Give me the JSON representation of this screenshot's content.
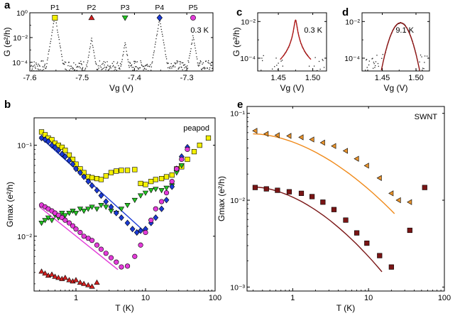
{
  "chart_data": [
    {
      "id": "a",
      "panel_label": "a",
      "type": "scatter",
      "xlabel": "Vg (V)",
      "ylabel": "G (e²/h)",
      "xlim": [
        -7.6,
        -7.25
      ],
      "ylim": [
        2e-05,
        1
      ],
      "yscale": "log",
      "xticks": [
        "-7.6",
        "-7.5",
        "-7.4",
        "-7.3"
      ],
      "yticks": [
        "10⁻⁴",
        "10⁻²",
        "10⁰"
      ],
      "annotation": "0.3 K",
      "peaks": [
        {
          "name": "P1",
          "x": -7.552,
          "color": "#f4f000",
          "marker": "square"
        },
        {
          "name": "P2",
          "x": -7.482,
          "color": "#d42020",
          "marker": "triangle-up"
        },
        {
          "name": "P3",
          "x": -7.418,
          "color": "#22c422",
          "marker": "triangle-down"
        },
        {
          "name": "P4",
          "x": -7.352,
          "color": "#1a3ad6",
          "marker": "diamond"
        },
        {
          "name": "P5",
          "x": -7.288,
          "color": "#e23ad8",
          "marker": "circle"
        }
      ],
      "peak_heights": [
        0.6,
        0.008,
        0.004,
        0.35,
        0.015
      ],
      "baseline": 5e-05,
      "series_color": "#222222"
    },
    {
      "id": "c",
      "panel_label": "c",
      "type": "scatter",
      "xlabel": "Vg (V)",
      "ylabel": "G (e²/h)",
      "xlim": [
        1.42,
        1.52
      ],
      "ylim": [
        2e-05,
        0.03
      ],
      "yscale": "log",
      "xticks": [
        "1.45",
        "1.50"
      ],
      "yticks": [
        "10⁻⁴",
        "10⁻²"
      ],
      "annotation": "0.3 K",
      "peak_center": 1.475,
      "peak_height": 0.012,
      "peak_width": 0.0028,
      "baseline": 5e-05,
      "fit_color": "#b01818"
    },
    {
      "id": "d",
      "panel_label": "d",
      "type": "scatter",
      "xlabel": "Vg (V)",
      "ylabel": "",
      "xlim": [
        1.42,
        1.52
      ],
      "ylim": [
        2e-05,
        0.03
      ],
      "yscale": "log",
      "xticks": [
        "1.45",
        "1.50"
      ],
      "yticks": [
        "10⁻⁴",
        "10⁻²"
      ],
      "annotation": "9.1 K",
      "peak_center": 1.477,
      "peak_height": 0.0085,
      "peak_width": 0.011,
      "baseline": 6e-05,
      "fit_color": "#8b1010"
    },
    {
      "id": "b",
      "panel_label": "b",
      "type": "scatter",
      "xlabel": "T (K)",
      "ylabel": "Gmax (e²/h)",
      "xscale": "log",
      "yscale": "log",
      "xlim": [
        0.25,
        100
      ],
      "ylim": [
        0.0025,
        0.2
      ],
      "xticks": [
        "1",
        "10",
        "100"
      ],
      "yticks": [
        "10⁻²",
        "10⁻¹"
      ],
      "annotation": "peapod",
      "series": [
        {
          "name": "P1",
          "color": "#f4f000",
          "marker": "square",
          "x": [
            0.32,
            0.36,
            0.4,
            0.45,
            0.5,
            0.56,
            0.63,
            0.7,
            0.8,
            0.9,
            1.0,
            1.15,
            1.3,
            1.5,
            1.7,
            2.0,
            2.3,
            2.7,
            3.2,
            3.8,
            4.5,
            5.5,
            7,
            8.5,
            10,
            12,
            14,
            17,
            20,
            24,
            28,
            33,
            40,
            50,
            60,
            80
          ],
          "y": [
            0.14,
            0.13,
            0.12,
            0.115,
            0.105,
            0.1,
            0.095,
            0.088,
            0.078,
            0.07,
            0.062,
            0.055,
            0.05,
            0.045,
            0.044,
            0.043,
            0.042,
            0.046,
            0.05,
            0.052,
            0.053,
            0.053,
            0.054,
            0.038,
            0.037,
            0.04,
            0.042,
            0.043,
            0.045,
            0.047,
            0.055,
            0.058,
            0.07,
            0.085,
            0.1,
            0.12
          ]
        },
        {
          "name": "P2",
          "color": "#d42020",
          "marker": "triangle-up",
          "x": [
            0.32,
            0.36,
            0.4,
            0.45,
            0.5,
            0.56,
            0.63,
            0.7,
            0.8,
            0.9,
            1.0,
            1.15,
            1.3,
            1.5,
            1.7,
            2.0
          ],
          "y": [
            0.0041,
            0.0039,
            0.0037,
            0.0038,
            0.0036,
            0.0035,
            0.0034,
            0.0035,
            0.0033,
            0.0032,
            0.0033,
            0.0031,
            0.003,
            0.0029,
            0.0028,
            0.0031
          ]
        },
        {
          "name": "P3",
          "color": "#22c422",
          "marker": "triangle-down",
          "x": [
            0.32,
            0.36,
            0.4,
            0.45,
            0.5,
            0.56,
            0.63,
            0.7,
            0.8,
            0.9,
            1.0,
            1.15,
            1.3,
            1.5,
            1.7,
            2.0,
            2.3,
            2.7,
            3.2,
            3.8,
            4.5,
            5.5,
            7,
            8.5,
            10,
            12,
            14,
            17,
            20,
            24,
            28,
            33
          ],
          "y": [
            0.014,
            0.015,
            0.016,
            0.015,
            0.017,
            0.016,
            0.018,
            0.017,
            0.018,
            0.019,
            0.018,
            0.02,
            0.019,
            0.02,
            0.021,
            0.02,
            0.022,
            0.021,
            0.019,
            0.018,
            0.02,
            0.022,
            0.025,
            0.028,
            0.03,
            0.032,
            0.033,
            0.032,
            0.034,
            0.036,
            0.05,
            0.06
          ]
        },
        {
          "name": "P4",
          "color": "#1a3ad6",
          "marker": "diamond",
          "x": [
            0.32,
            0.36,
            0.4,
            0.45,
            0.5,
            0.56,
            0.63,
            0.7,
            0.8,
            0.9,
            1.0,
            1.15,
            1.3,
            1.5,
            1.7,
            2.0,
            2.3,
            2.7,
            3.2,
            3.8,
            4.5,
            5.5,
            6.5,
            7.5,
            8.5,
            10,
            12,
            14,
            17,
            20,
            24,
            28,
            33,
            40
          ],
          "y": [
            0.12,
            0.115,
            0.11,
            0.1,
            0.095,
            0.088,
            0.08,
            0.075,
            0.068,
            0.062,
            0.055,
            0.05,
            0.045,
            0.04,
            0.036,
            0.032,
            0.028,
            0.024,
            0.021,
            0.018,
            0.016,
            0.014,
            0.012,
            0.011,
            0.0115,
            0.012,
            0.014,
            0.016,
            0.02,
            0.025,
            0.035,
            0.055,
            0.075,
            0.095
          ]
        },
        {
          "name": "P5",
          "color": "#e23ad8",
          "marker": "circle",
          "x": [
            0.32,
            0.36,
            0.4,
            0.45,
            0.5,
            0.56,
            0.63,
            0.7,
            0.8,
            0.9,
            1.0,
            1.15,
            1.3,
            1.5,
            1.7,
            2.0,
            2.3,
            2.7,
            3.2,
            3.8,
            4.5,
            5.5,
            7,
            8.5,
            10,
            12,
            14,
            17,
            20,
            24,
            28,
            33,
            40
          ],
          "y": [
            0.022,
            0.021,
            0.02,
            0.019,
            0.018,
            0.017,
            0.016,
            0.015,
            0.014,
            0.013,
            0.012,
            0.011,
            0.01,
            0.0095,
            0.009,
            0.008,
            0.0072,
            0.0065,
            0.0058,
            0.0052,
            0.0046,
            0.0047,
            0.006,
            0.008,
            0.011,
            0.015,
            0.02,
            0.024,
            0.03,
            0.04,
            0.055,
            0.07,
            0.09
          ]
        }
      ],
      "fits": [
        {
          "color": "#1a3ad6",
          "x": [
            0.3,
            10
          ],
          "y": [
            0.125,
            0.011
          ]
        },
        {
          "color": "#e23ad8",
          "x": [
            0.3,
            4.0
          ],
          "y": [
            0.021,
            0.0043
          ]
        }
      ]
    },
    {
      "id": "e",
      "panel_label": "e",
      "type": "scatter",
      "xlabel": "T (K)",
      "ylabel": "Gmax (e²/h)",
      "xscale": "log",
      "yscale": "log",
      "xlim": [
        0.25,
        100
      ],
      "ylim": [
        0.0009,
        0.12
      ],
      "xticks": [
        "1",
        "10",
        "100"
      ],
      "yticks": [
        "10⁻³",
        "10⁻²",
        "10⁻¹"
      ],
      "annotation": "SWNT",
      "series": [
        {
          "name": "",
          "color": "#e8922a",
          "marker": "triangle-left",
          "x": [
            0.32,
            0.45,
            0.63,
            0.9,
            1.3,
            1.8,
            2.5,
            3.5,
            5,
            7,
            9.5,
            14,
            20,
            25,
            35
          ],
          "y": [
            0.063,
            0.058,
            0.056,
            0.055,
            0.053,
            0.05,
            0.046,
            0.042,
            0.037,
            0.03,
            0.025,
            0.018,
            0.012,
            0.01,
            0.0095
          ]
        },
        {
          "name": "",
          "color": "#7a1515",
          "marker": "square",
          "x": [
            0.32,
            0.45,
            0.63,
            0.9,
            1.3,
            1.8,
            2.5,
            3.5,
            5,
            7,
            9.5,
            14,
            20,
            35,
            55
          ],
          "y": [
            0.014,
            0.0135,
            0.013,
            0.0125,
            0.012,
            0.011,
            0.0095,
            0.0078,
            0.0059,
            0.0042,
            0.0032,
            0.0023,
            0.0017,
            0.0045,
            0.014
          ]
        }
      ],
      "fits": [
        {
          "color": "#f08a1a",
          "x": [
            0.3,
            22
          ],
          "y": [
            0.058,
            0.007
          ],
          "curve": true
        },
        {
          "color": "#7a1515",
          "x": [
            0.3,
            15
          ],
          "y": [
            0.0142,
            0.0015
          ],
          "curve": true
        }
      ]
    }
  ]
}
